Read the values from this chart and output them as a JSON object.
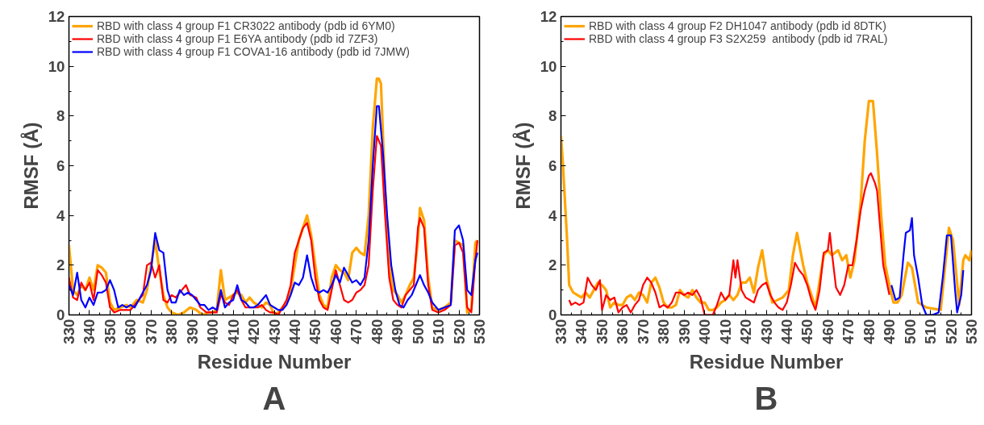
{
  "chart_data": [
    {
      "type": "line",
      "title": "A",
      "xlabel": "Residue Number",
      "ylabel": "RMSF (Å)",
      "xlim": [
        330,
        530
      ],
      "ylim": [
        0,
        12
      ],
      "xticks": [
        330,
        340,
        350,
        360,
        370,
        380,
        390,
        400,
        410,
        420,
        430,
        440,
        450,
        460,
        470,
        480,
        490,
        500,
        510,
        520,
        530
      ],
      "yticks": [
        0,
        2,
        4,
        6,
        8,
        10,
        12
      ],
      "grid": false,
      "legend": "top left",
      "marker": "none",
      "line_style": "solid",
      "series": [
        {
          "name": "RBD with class 4 group F1 CR3022 antibody (pdb id 6YM0)",
          "color": "#ffa500",
          "x": [
            330,
            332,
            334,
            336,
            338,
            340,
            342,
            344,
            346,
            348,
            350,
            352,
            355,
            358,
            360,
            363,
            366,
            368,
            370,
            372,
            374,
            376,
            378,
            380,
            383,
            386,
            389,
            392,
            395,
            398,
            400,
            402,
            404,
            406,
            408,
            410,
            412,
            414,
            416,
            418,
            420,
            422,
            424,
            426,
            428,
            430,
            432,
            434,
            436,
            438,
            440,
            442,
            444,
            446,
            448,
            450,
            452,
            454,
            456,
            458,
            460,
            462,
            464,
            466,
            468,
            470,
            472,
            474,
            476,
            478,
            480,
            481,
            482,
            484,
            486,
            488,
            490,
            492,
            494,
            496,
            498,
            500,
            501,
            503,
            505,
            507,
            510,
            513,
            516,
            518,
            520,
            522,
            524,
            526,
            528,
            529
          ],
          "values": [
            2.8,
            1.0,
            0.8,
            1.2,
            1.0,
            1.5,
            1.0,
            2.0,
            1.9,
            1.7,
            0.5,
            0.2,
            0.3,
            0.4,
            0.3,
            0.6,
            0.5,
            1.0,
            2.0,
            3.0,
            1.8,
            0.8,
            0.3,
            0.1,
            0.0,
            0.1,
            0.3,
            0.2,
            0.0,
            0.1,
            0.1,
            0.2,
            1.8,
            0.6,
            0.7,
            0.8,
            0.9,
            0.8,
            0.5,
            0.7,
            0.5,
            0.4,
            0.3,
            0.5,
            0.4,
            0.0,
            0.1,
            0.3,
            0.5,
            1.0,
            2.0,
            3.0,
            3.5,
            4.0,
            3.2,
            2.0,
            0.8,
            0.4,
            0.3,
            1.5,
            2.0,
            1.8,
            1.7,
            1.4,
            2.5,
            2.7,
            2.5,
            2.4,
            4.0,
            7.5,
            9.5,
            9.5,
            9.3,
            5.0,
            2.0,
            1.0,
            0.8,
            0.5,
            0.8,
            1.2,
            1.5,
            3.0,
            4.3,
            3.8,
            1.5,
            0.3,
            0.2,
            0.3,
            0.5,
            3.0,
            2.9,
            2.8,
            0.1,
            0.2,
            2.9,
            3.0
          ]
        },
        {
          "name": "RBD with class 4 group F1 E6YA antibody (pdb id 7ZF3)",
          "color": "#ff0000",
          "x": [
            330,
            332,
            334,
            336,
            338,
            340,
            342,
            344,
            346,
            348,
            350,
            352,
            355,
            358,
            360,
            363,
            366,
            368,
            370,
            372,
            374,
            376,
            378,
            380,
            382,
            385,
            387,
            389,
            392,
            394,
            397,
            400,
            402,
            404,
            406,
            408,
            410,
            412,
            414,
            416,
            418,
            420,
            422,
            424,
            426,
            428,
            430,
            432,
            434,
            436,
            438,
            440,
            442,
            444,
            446,
            448,
            450,
            452,
            454,
            456,
            458,
            460,
            462,
            464,
            466,
            468,
            470,
            472,
            474,
            476,
            478,
            480,
            482,
            484,
            486,
            488,
            490,
            492,
            494,
            496,
            498,
            500,
            501,
            503,
            505,
            507,
            510,
            513,
            516,
            518,
            520,
            522,
            524,
            526,
            528,
            529
          ],
          "values": [
            1.5,
            0.7,
            0.6,
            1.3,
            1.0,
            1.3,
            0.6,
            1.8,
            1.6,
            1.3,
            0.3,
            0.1,
            0.2,
            0.2,
            0.2,
            0.5,
            0.8,
            2.0,
            2.1,
            1.5,
            2.0,
            0.6,
            0.5,
            0.8,
            0.7,
            1.0,
            1.2,
            0.8,
            0.7,
            0.3,
            0.1,
            0.1,
            0.1,
            0.8,
            0.5,
            0.4,
            0.8,
            1.0,
            0.6,
            0.3,
            0.3,
            0.3,
            0.3,
            0.4,
            0.2,
            0.1,
            0.1,
            0.0,
            0.3,
            0.6,
            1.2,
            2.5,
            3.0,
            3.5,
            3.7,
            3.0,
            1.5,
            0.6,
            0.3,
            0.2,
            1.0,
            1.8,
            1.2,
            0.6,
            0.5,
            0.6,
            0.9,
            1.0,
            1.2,
            2.0,
            5.0,
            7.2,
            6.8,
            4.0,
            1.5,
            0.6,
            0.4,
            0.3,
            0.8,
            1.0,
            1.2,
            3.5,
            3.9,
            3.5,
            1.2,
            0.2,
            0.1,
            0.2,
            0.4,
            2.8,
            2.9,
            2.5,
            0.3,
            0.1,
            2.2,
            3.0
          ]
        },
        {
          "name": "RBD with class 4 group F1 COVA1-16 antibody (pdb id 7JMW)",
          "color": "#0000ff",
          "x": [
            330,
            332,
            334,
            336,
            338,
            340,
            342,
            344,
            346,
            348,
            350,
            352,
            354,
            356,
            358,
            360,
            362,
            364,
            366,
            368,
            370,
            372,
            374,
            376,
            378,
            380,
            382,
            384,
            386,
            388,
            390,
            392,
            394,
            396,
            398,
            400,
            402,
            404,
            406,
            408,
            410,
            412,
            414,
            416,
            418,
            420,
            422,
            424,
            426,
            428,
            430,
            432,
            434,
            436,
            438,
            440,
            442,
            444,
            446,
            448,
            450,
            452,
            454,
            456,
            458,
            460,
            462,
            464,
            466,
            468,
            470,
            472,
            474,
            476,
            478,
            480,
            481,
            483,
            485,
            487,
            489,
            491,
            493,
            495,
            497,
            499,
            501,
            503,
            505,
            507,
            510,
            513,
            516,
            518,
            520,
            522,
            524,
            526,
            528,
            529
          ],
          "values": [
            1.2,
            0.8,
            1.7,
            0.6,
            0.3,
            0.7,
            0.4,
            0.9,
            0.9,
            1.0,
            1.4,
            1.0,
            0.3,
            0.4,
            0.3,
            0.4,
            0.3,
            0.6,
            0.9,
            1.2,
            1.8,
            3.3,
            2.6,
            2.5,
            1.0,
            0.5,
            0.5,
            1.0,
            0.8,
            0.9,
            0.8,
            0.6,
            0.4,
            0.4,
            0.2,
            0.3,
            0.2,
            1.0,
            0.3,
            0.5,
            0.6,
            1.2,
            0.6,
            0.5,
            0.3,
            0.3,
            0.4,
            0.6,
            0.8,
            0.4,
            0.3,
            0.2,
            0.2,
            0.4,
            0.8,
            1.3,
            1.2,
            1.5,
            2.4,
            1.5,
            1.0,
            0.9,
            1.0,
            0.9,
            1.2,
            1.6,
            1.3,
            1.9,
            1.6,
            1.3,
            1.4,
            1.2,
            1.5,
            3.0,
            6.0,
            8.4,
            8.4,
            6.5,
            4.0,
            2.0,
            1.0,
            0.4,
            0.3,
            0.6,
            0.8,
            1.2,
            1.6,
            1.2,
            0.9,
            0.5,
            0.2,
            0.3,
            0.4,
            3.4,
            3.6,
            3.0,
            1.0,
            0.8,
            2.2,
            2.5
          ]
        }
      ]
    },
    {
      "type": "line",
      "title": "B",
      "xlabel": "Residue Number",
      "ylabel": "RMSF (Å)",
      "xlim": [
        330,
        530
      ],
      "ylim": [
        0,
        12
      ],
      "xticks": [
        330,
        340,
        350,
        360,
        370,
        380,
        390,
        400,
        410,
        420,
        430,
        440,
        450,
        460,
        470,
        480,
        490,
        500,
        510,
        520,
        530
      ],
      "yticks": [
        0,
        2,
        4,
        6,
        8,
        10,
        12
      ],
      "grid": false,
      "legend": "top left",
      "marker": "none",
      "line_style": "solid",
      "series": [
        {
          "name": "RBD with class 4 group F2 DH1047 antibody (pdb id 8DTK)",
          "color": "#ffa500",
          "x": [
            330,
            331,
            333,
            334,
            336,
            338,
            340,
            342,
            344,
            346,
            348,
            350,
            352,
            354,
            356,
            358,
            360,
            362,
            364,
            366,
            368,
            370,
            372,
            374,
            376,
            378,
            380,
            382,
            384,
            386,
            388,
            390,
            392,
            394,
            396,
            398,
            400,
            402,
            404,
            406,
            408,
            410,
            412,
            414,
            416,
            418,
            420,
            422,
            424,
            426,
            428,
            430,
            433,
            438,
            441,
            443,
            445,
            448,
            450,
            454,
            458,
            460,
            462,
            465,
            467,
            469,
            471,
            473,
            476,
            478,
            480,
            482,
            484,
            486,
            488,
            490,
            492,
            494,
            496,
            499,
            501,
            504,
            508,
            515,
            519,
            521,
            524,
            526,
            527,
            529,
            530
          ],
          "values": [
            7.2,
            6.0,
            3.0,
            1.2,
            0.9,
            0.8,
            0.7,
            0.9,
            0.7,
            1.0,
            1.3,
            1.2,
            1.0,
            0.3,
            0.5,
            0.4,
            0.4,
            0.7,
            0.8,
            0.6,
            0.9,
            0.8,
            0.5,
            1.3,
            1.5,
            1.1,
            0.5,
            0.3,
            0.3,
            0.4,
            1.0,
            0.8,
            0.7,
            1.0,
            0.7,
            0.5,
            0.5,
            0.2,
            0.2,
            0.3,
            0.5,
            0.6,
            0.8,
            0.6,
            0.8,
            1.3,
            1.3,
            1.5,
            0.9,
            1.9,
            2.6,
            1.5,
            0.5,
            0.7,
            1.0,
            2.4,
            3.3,
            2.0,
            1.3,
            0.3,
            2.4,
            2.6,
            2.4,
            2.6,
            2.2,
            2.4,
            1.5,
            2.2,
            4.5,
            7.0,
            8.6,
            8.6,
            6.5,
            4.0,
            2.0,
            1.2,
            0.5,
            0.5,
            0.8,
            2.1,
            1.9,
            0.5,
            0.3,
            0.2,
            3.5,
            3.0,
            0.4,
            2.2,
            2.4,
            2.2,
            2.6
          ]
        },
        {
          "name": "RBD with class 4 group F3 S2X259  antibody (pdb id 7RAL)",
          "color": "#ff0000",
          "x": [
            334,
            335,
            337,
            339,
            341,
            343,
            345,
            347,
            349,
            350,
            352,
            354,
            356,
            358,
            360,
            362,
            364,
            366,
            368,
            370,
            372,
            374,
            376,
            378,
            380,
            382,
            384,
            386,
            388,
            390,
            392,
            394,
            396,
            398,
            400,
            402,
            404,
            406,
            408,
            410,
            412,
            414,
            415,
            416,
            418,
            420,
            422,
            424,
            426,
            428,
            430,
            432,
            434,
            436,
            438,
            440,
            442,
            444,
            446,
            448,
            450,
            452,
            454,
            456,
            458,
            460,
            461,
            462,
            464,
            466,
            468,
            470,
            472,
            474,
            476,
            478,
            480,
            481,
            483,
            484,
            485,
            487,
            489,
            490
          ],
          "values": [
            0.6,
            0.4,
            0.5,
            0.4,
            0.5,
            1.5,
            1.2,
            1.0,
            1.4,
            0.2,
            0.8,
            0.6,
            0.7,
            0.1,
            0.3,
            0.4,
            0.1,
            0.4,
            0.6,
            1.2,
            1.5,
            1.3,
            0.9,
            0.3,
            0.4,
            0.3,
            0.5,
            0.9,
            0.9,
            0.8,
            0.9,
            0.8,
            1.0,
            0.7,
            0.0,
            0.0,
            0.0,
            0.4,
            0.9,
            0.6,
            0.8,
            2.2,
            1.5,
            2.2,
            1.0,
            0.7,
            0.6,
            0.5,
            1.0,
            1.2,
            1.3,
            0.8,
            0.5,
            0.3,
            0.2,
            0.5,
            1.2,
            2.1,
            1.8,
            1.6,
            1.2,
            0.6,
            0.2,
            1.0,
            2.5,
            2.6,
            3.3,
            2.5,
            1.1,
            0.8,
            1.2,
            2.0,
            2.0,
            3.0,
            4.2,
            5.0,
            5.6,
            5.7,
            5.3,
            5.0,
            4.0,
            2.0,
            1.2,
            0.8
          ]
        },
        {
          "color": "#0000ff",
          "x": [
            491,
            493,
            495,
            497,
            498,
            500,
            501,
            502,
            504,
            506,
            508,
            511,
            514,
            516,
            518,
            520,
            522,
            523,
            525,
            526
          ],
          "values": [
            1.2,
            0.6,
            0.7,
            2.5,
            3.3,
            3.4,
            3.9,
            2.4,
            1.5,
            0.4,
            0.0,
            0.0,
            0.1,
            1.5,
            3.2,
            3.2,
            1.0,
            0.1,
            0.8,
            1.8
          ]
        }
      ]
    }
  ]
}
